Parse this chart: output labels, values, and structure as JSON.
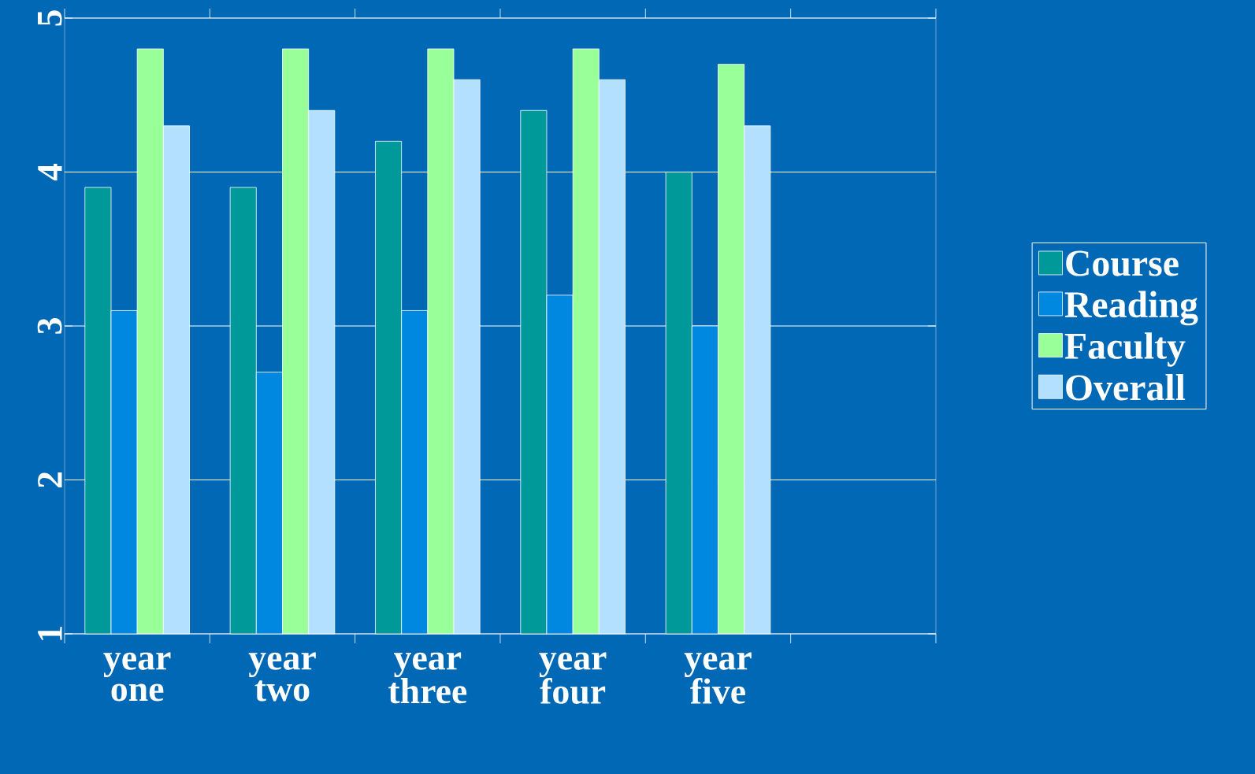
{
  "chart_data": {
    "type": "bar",
    "categories": [
      "year one",
      "year two",
      "year three",
      "year four",
      "year five",
      null
    ],
    "series": [
      {
        "name": "Course",
        "color": "#009999",
        "values": [
          3.9,
          3.9,
          4.2,
          4.4,
          4.0,
          null
        ]
      },
      {
        "name": "Reading",
        "color": "#0088e0",
        "values": [
          3.1,
          2.7,
          3.1,
          3.2,
          3.0,
          null
        ]
      },
      {
        "name": "Faculty",
        "color": "#99ff99",
        "values": [
          4.8,
          4.8,
          4.8,
          4.8,
          4.7,
          null
        ]
      },
      {
        "name": "Overall",
        "color": "#b3e0ff",
        "values": [
          4.3,
          4.4,
          4.6,
          4.6,
          4.3,
          null
        ]
      }
    ],
    "ylim": [
      1,
      5
    ],
    "yticks": [
      1,
      2,
      3,
      4,
      5
    ],
    "grid": "y",
    "legend": "right"
  }
}
